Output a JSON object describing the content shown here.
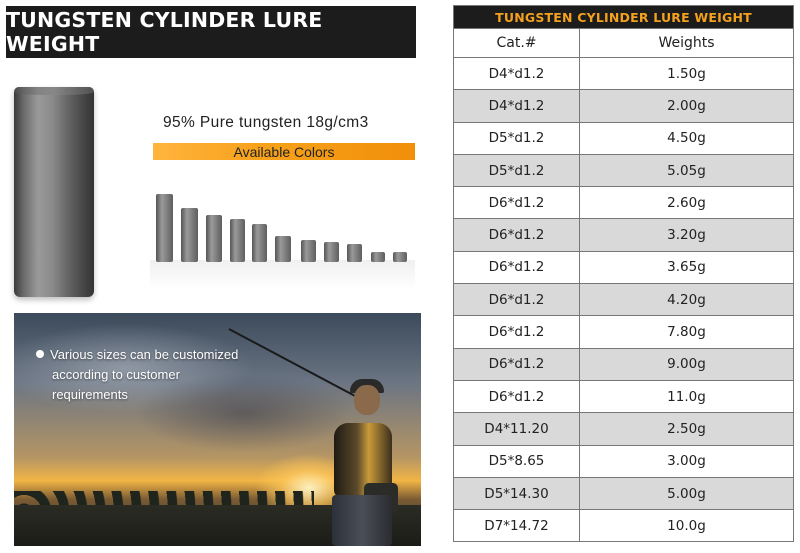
{
  "title": "TUNGSTEN CYLINDER LURE WEIGHT",
  "purity_text": "95% Pure tungsten 18g/cm3",
  "colors_label": "Available Colors",
  "photo_caption": {
    "line1": "Various sizes can be customized",
    "line2": "according to customer",
    "line3": "requirements"
  },
  "table": {
    "title": "TUNGSTEN CYLINDER LURE WEIGHT",
    "header_color": "#f4a11e",
    "columns": [
      "Cat.#",
      "Weights"
    ],
    "rows": [
      {
        "cat": "D4*d1.2",
        "weight": "1.50g"
      },
      {
        "cat": "D4*d1.2",
        "weight": "2.00g"
      },
      {
        "cat": "D5*d1.2",
        "weight": "4.50g"
      },
      {
        "cat": "D5*d1.2",
        "weight": "5.05g"
      },
      {
        "cat": "D6*d1.2",
        "weight": "2.60g"
      },
      {
        "cat": "D6*d1.2",
        "weight": "3.20g"
      },
      {
        "cat": "D6*d1.2",
        "weight": "3.65g"
      },
      {
        "cat": "D6*d1.2",
        "weight": "4.20g"
      },
      {
        "cat": "D6*d1.2",
        "weight": "7.80g"
      },
      {
        "cat": "D6*d1.2",
        "weight": "9.00g"
      },
      {
        "cat": "D6*d1.2",
        "weight": "11.0g"
      },
      {
        "cat": "D4*11.20",
        "weight": "2.50g"
      },
      {
        "cat": "D5*8.65",
        "weight": "3.00g"
      },
      {
        "cat": "D5*14.30",
        "weight": "5.00g"
      },
      {
        "cat": "D7*14.72",
        "weight": "10.0g"
      }
    ]
  },
  "accent_color": "#f18f0a"
}
